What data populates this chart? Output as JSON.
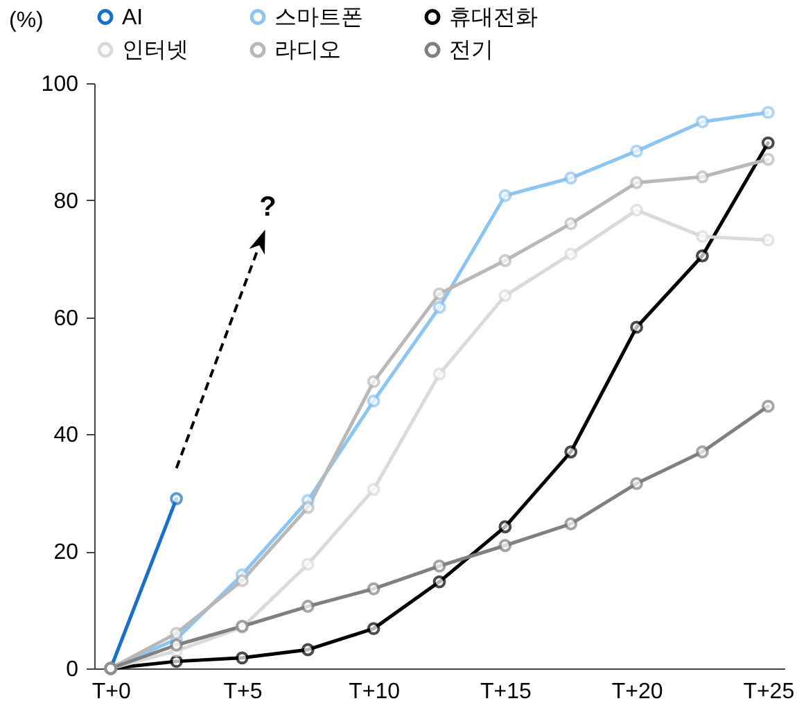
{
  "chart_data": {
    "type": "line",
    "ylabel": "(%)",
    "categories": [
      "T+0",
      null,
      "T+5",
      null,
      "T+10",
      null,
      "T+15",
      null,
      "T+20",
      null,
      "T+25"
    ],
    "ylim": [
      0,
      100
    ],
    "yticks": [
      0,
      20,
      40,
      60,
      80,
      100
    ],
    "grid": false,
    "legend": "top",
    "marker": "circle",
    "line_style": "solid",
    "annotations": [
      "?"
    ],
    "series": [
      {
        "name": "AI",
        "color": "#1a6fc9",
        "values": [
          0,
          29,
          null,
          null,
          null,
          null,
          null,
          null,
          null,
          null,
          null
        ]
      },
      {
        "name": "스마트폰",
        "color": "#8cc4f2",
        "values": [
          0,
          5,
          16,
          28.7,
          45.7,
          61.7,
          80.8,
          83.8,
          88.4,
          93.4,
          95
        ]
      },
      {
        "name": "휴대전화",
        "color": "#000000",
        "values": [
          0,
          1.2,
          1.8,
          3.2,
          6.8,
          14.8,
          24.2,
          37,
          58.3,
          70.5,
          89.8
        ]
      },
      {
        "name": "인터넷",
        "color": "#dadada",
        "values": [
          0,
          3,
          7,
          17.8,
          30.6,
          50.3,
          63.7,
          70.8,
          78.3,
          73.8,
          73.2
        ]
      },
      {
        "name": "라디오",
        "color": "#b8b8b8",
        "values": [
          0,
          6,
          15,
          27.5,
          49,
          64,
          69.7,
          76,
          83,
          84,
          87
        ]
      },
      {
        "name": "전기",
        "color": "#808080",
        "values": [
          0,
          4,
          7.2,
          10.6,
          13.6,
          17.5,
          21,
          24.7,
          31.6,
          37,
          44.8
        ]
      }
    ]
  }
}
